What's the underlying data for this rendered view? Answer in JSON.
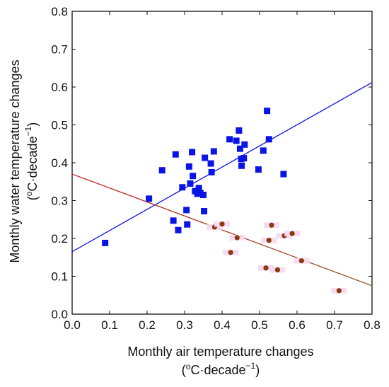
{
  "chart_data": {
    "type": "scatter",
    "xlabel_line1": "Monthly air temperature changes",
    "xlabel_line2_main": "(",
    "xlabel_line2_sup": "o",
    "xlabel_line2_rest": "C·decade",
    "xlabel_line2_exp": "−1",
    "xlabel_line2_close": ")",
    "ylabel_line1": "Monthly water temperature changes",
    "ylabel_line2_main": "(",
    "ylabel_line2_sup": "o",
    "ylabel_line2_rest": "C·decade",
    "ylabel_line2_exp": "−1",
    "ylabel_line2_close": ")",
    "xlim": [
      0.0,
      0.8
    ],
    "ylim": [
      0.0,
      0.8
    ],
    "xticks": [
      "0.0",
      "0.1",
      "0.2",
      "0.3",
      "0.4",
      "0.5",
      "0.6",
      "0.7",
      "0.8"
    ],
    "yticks": [
      "0.0",
      "0.1",
      "0.2",
      "0.3",
      "0.4",
      "0.5",
      "0.6",
      "0.7",
      "0.8"
    ],
    "grid": false,
    "legend": "none",
    "series": [
      {
        "marker": "square",
        "color": "#0a14e6",
        "points": [
          [
            0.088,
            0.188
          ],
          [
            0.205,
            0.305
          ],
          [
            0.24,
            0.38
          ],
          [
            0.27,
            0.247
          ],
          [
            0.276,
            0.422
          ],
          [
            0.283,
            0.222
          ],
          [
            0.294,
            0.335
          ],
          [
            0.305,
            0.275
          ],
          [
            0.307,
            0.237
          ],
          [
            0.312,
            0.39
          ],
          [
            0.315,
            0.345
          ],
          [
            0.32,
            0.428
          ],
          [
            0.322,
            0.365
          ],
          [
            0.328,
            0.325
          ],
          [
            0.334,
            0.318
          ],
          [
            0.338,
            0.333
          ],
          [
            0.342,
            0.32
          ],
          [
            0.35,
            0.315
          ],
          [
            0.352,
            0.272
          ],
          [
            0.354,
            0.413
          ],
          [
            0.37,
            0.398
          ],
          [
            0.372,
            0.375
          ],
          [
            0.378,
            0.43
          ],
          [
            0.42,
            0.462
          ],
          [
            0.438,
            0.458
          ],
          [
            0.445,
            0.485
          ],
          [
            0.448,
            0.437
          ],
          [
            0.451,
            0.41
          ],
          [
            0.452,
            0.392
          ],
          [
            0.458,
            0.412
          ],
          [
            0.46,
            0.448
          ],
          [
            0.497,
            0.382
          ],
          [
            0.51,
            0.432
          ],
          [
            0.52,
            0.537
          ],
          [
            0.525,
            0.462
          ],
          [
            0.564,
            0.37
          ]
        ]
      },
      {
        "marker": "circle",
        "color": "#8b3a10",
        "points": [
          [
            0.38,
            0.23
          ],
          [
            0.4,
            0.238
          ],
          [
            0.423,
            0.163
          ],
          [
            0.44,
            0.202
          ],
          [
            0.517,
            0.122
          ],
          [
            0.525,
            0.195
          ],
          [
            0.532,
            0.235
          ],
          [
            0.548,
            0.117
          ],
          [
            0.566,
            0.207
          ],
          [
            0.587,
            0.213
          ],
          [
            0.612,
            0.141
          ],
          [
            0.712,
            0.062
          ]
        ]
      }
    ],
    "fit_lines": [
      {
        "color": "#0a14e6",
        "x": [
          0.0,
          0.8
        ],
        "y": [
          0.165,
          0.612
        ]
      },
      {
        "color": "#c8201e",
        "color_end": "#8b5a2b",
        "x": [
          0.0,
          0.8
        ],
        "y": [
          0.37,
          0.075
        ]
      }
    ]
  }
}
